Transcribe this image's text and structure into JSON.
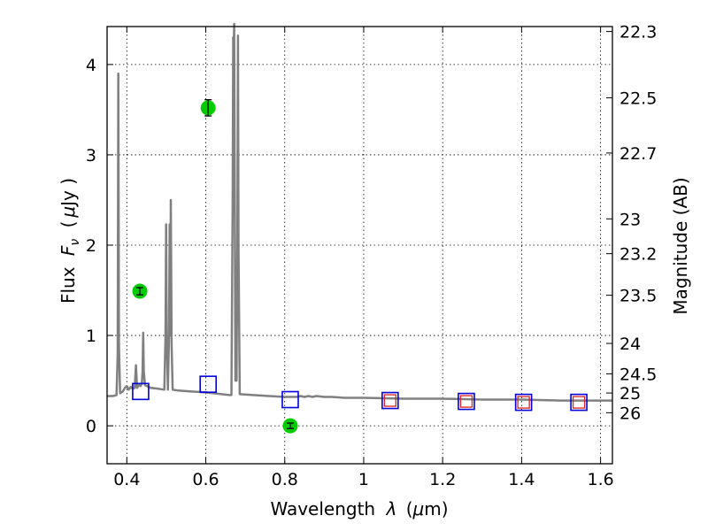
{
  "chart_data": {
    "type": "scatter",
    "xlabel_text": "Wavelength",
    "xlabel_symbol": "λ",
    "xlabel_unit_open": "(",
    "xlabel_unit_mu": "μ",
    "xlabel_unit_rest": "m)",
    "ylabel_text": "Flux",
    "ylabel_symbol": "F",
    "ylabel_subscript": "ν",
    "ylabel_unit_open": "(",
    "ylabel_unit_mu": "μ",
    "ylabel_unit_rest": "Jy )",
    "y2label": "Magnitude (AB)",
    "xlim": [
      0.35,
      1.63
    ],
    "ylim": [
      -0.42,
      4.42
    ],
    "grid": true,
    "x_ticks": [
      {
        "value": 0.4,
        "label": "0.4"
      },
      {
        "value": 0.6,
        "label": "0.6"
      },
      {
        "value": 0.8,
        "label": "0.8"
      },
      {
        "value": 1.0,
        "label": "1"
      },
      {
        "value": 1.2,
        "label": "1.2"
      },
      {
        "value": 1.4,
        "label": "1.4"
      },
      {
        "value": 1.6,
        "label": "1.6"
      }
    ],
    "y_ticks": [
      {
        "value": 0,
        "label": "0"
      },
      {
        "value": 1,
        "label": "1"
      },
      {
        "value": 2,
        "label": "2"
      },
      {
        "value": 3,
        "label": "3"
      },
      {
        "value": 4,
        "label": "4"
      }
    ],
    "mag_ticks": [
      {
        "mag": 22.3,
        "label": "22.3"
      },
      {
        "mag": 22.5,
        "label": "22.5"
      },
      {
        "mag": 22.7,
        "label": "22.7"
      },
      {
        "mag": 23.0,
        "label": "23"
      },
      {
        "mag": 23.2,
        "label": "23.2"
      },
      {
        "mag": 23.5,
        "label": "23.5"
      },
      {
        "mag": 24.0,
        "label": "24"
      },
      {
        "mag": 24.5,
        "label": "24.5"
      },
      {
        "mag": 25.0,
        "label": "25"
      },
      {
        "mag": 26.0,
        "label": "26"
      }
    ],
    "model_spectrum": {
      "color": "#808080",
      "points": [
        [
          0.35,
          0.33
        ],
        [
          0.365,
          0.33
        ],
        [
          0.374,
          0.34
        ],
        [
          0.377,
          0.8
        ],
        [
          0.3785,
          3.9
        ],
        [
          0.38,
          0.9
        ],
        [
          0.383,
          0.36
        ],
        [
          0.39,
          0.38
        ],
        [
          0.395,
          0.42
        ],
        [
          0.4,
          0.44
        ],
        [
          0.405,
          0.4
        ],
        [
          0.41,
          0.43
        ],
        [
          0.415,
          0.41
        ],
        [
          0.42,
          0.42
        ],
        [
          0.423,
          0.67
        ],
        [
          0.426,
          0.42
        ],
        [
          0.43,
          0.45
        ],
        [
          0.435,
          0.44
        ],
        [
          0.438,
          0.47
        ],
        [
          0.44,
          0.6
        ],
        [
          0.4415,
          1.03
        ],
        [
          0.443,
          0.6
        ],
        [
          0.446,
          0.45
        ],
        [
          0.46,
          0.42
        ],
        [
          0.48,
          0.41
        ],
        [
          0.495,
          0.4
        ],
        [
          0.498,
          1.0
        ],
        [
          0.4995,
          2.23
        ],
        [
          0.501,
          1.0
        ],
        [
          0.504,
          0.4
        ],
        [
          0.507,
          1.0
        ],
        [
          0.5085,
          2.23
        ],
        [
          0.51,
          1.0
        ],
        [
          0.5115,
          2.5
        ],
        [
          0.5135,
          0.9
        ],
        [
          0.516,
          0.4
        ],
        [
          0.53,
          0.39
        ],
        [
          0.56,
          0.38
        ],
        [
          0.6,
          0.37
        ],
        [
          0.64,
          0.35
        ],
        [
          0.66,
          0.34
        ],
        [
          0.665,
          0.34
        ],
        [
          0.668,
          2.5
        ],
        [
          0.6695,
          4.3
        ],
        [
          0.6705,
          4.1
        ],
        [
          0.672,
          4.45
        ],
        [
          0.675,
          0.5
        ],
        [
          0.678,
          0.5
        ],
        [
          0.68,
          2.0
        ],
        [
          0.6815,
          4.32
        ],
        [
          0.683,
          2.0
        ],
        [
          0.686,
          0.35
        ],
        [
          0.72,
          0.34
        ],
        [
          0.76,
          0.33
        ],
        [
          0.8,
          0.32
        ],
        [
          0.83,
          0.32
        ],
        [
          0.84,
          0.33
        ],
        [
          0.85,
          0.32
        ],
        [
          0.86,
          0.33
        ],
        [
          0.87,
          0.32
        ],
        [
          0.88,
          0.33
        ],
        [
          0.9,
          0.32
        ],
        [
          0.92,
          0.32
        ],
        [
          0.95,
          0.31
        ],
        [
          1.0,
          0.31
        ],
        [
          1.1,
          0.3
        ],
        [
          1.2,
          0.3
        ],
        [
          1.3,
          0.29
        ],
        [
          1.4,
          0.29
        ],
        [
          1.5,
          0.28
        ],
        [
          1.63,
          0.28
        ]
      ]
    },
    "observed_points": {
      "color": "#00cc00",
      "points": [
        {
          "x": 0.433,
          "y": 1.49,
          "yerr": 0.04
        },
        {
          "x": 0.606,
          "y": 3.52,
          "yerr": 0.09
        },
        {
          "x": 0.814,
          "y": 0.0,
          "yerr": 0.03
        }
      ]
    },
    "model_photometry_blue": {
      "color": "#0000dd",
      "points": [
        {
          "x": 0.435,
          "y": 0.38
        },
        {
          "x": 0.606,
          "y": 0.46
        },
        {
          "x": 0.814,
          "y": 0.29
        },
        {
          "x": 1.067,
          "y": 0.28
        },
        {
          "x": 1.26,
          "y": 0.27
        },
        {
          "x": 1.405,
          "y": 0.26
        },
        {
          "x": 1.545,
          "y": 0.26
        }
      ]
    },
    "model_photometry_red": {
      "color": "#dd2222",
      "points": [
        {
          "x": 1.067,
          "y": 0.28
        },
        {
          "x": 1.26,
          "y": 0.27
        },
        {
          "x": 1.405,
          "y": 0.26
        },
        {
          "x": 1.545,
          "y": 0.26
        }
      ]
    }
  }
}
